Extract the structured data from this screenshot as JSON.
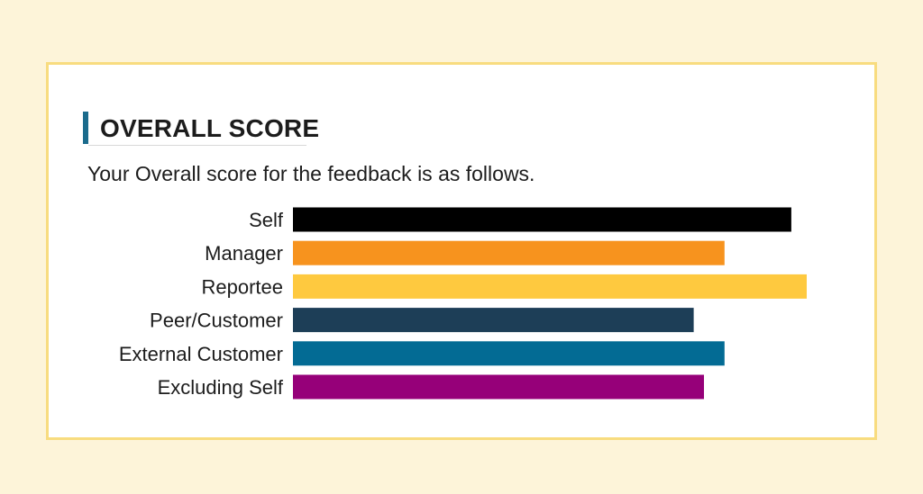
{
  "header": {
    "title": "OVERALL SCORE",
    "subtitle": "Your Overall score for the feedback is as follows."
  },
  "colors": {
    "background": "#fdf4d9",
    "card_border": "#f8dc7f",
    "title_accent": "#1b6b8c"
  },
  "chart_data": {
    "type": "bar",
    "orientation": "horizontal",
    "categories": [
      "Self",
      "Manager",
      "Reportee",
      "Peer/Customer",
      "External Customer",
      "Excluding Self"
    ],
    "values": [
      4.85,
      4.2,
      5.0,
      3.9,
      4.2,
      4.0
    ],
    "colors": [
      "#000000",
      "#f7931e",
      "#fec93f",
      "#1d3e57",
      "#036b94",
      "#960079"
    ],
    "xlim": [
      0,
      5
    ],
    "grid": false,
    "legend": "none"
  }
}
